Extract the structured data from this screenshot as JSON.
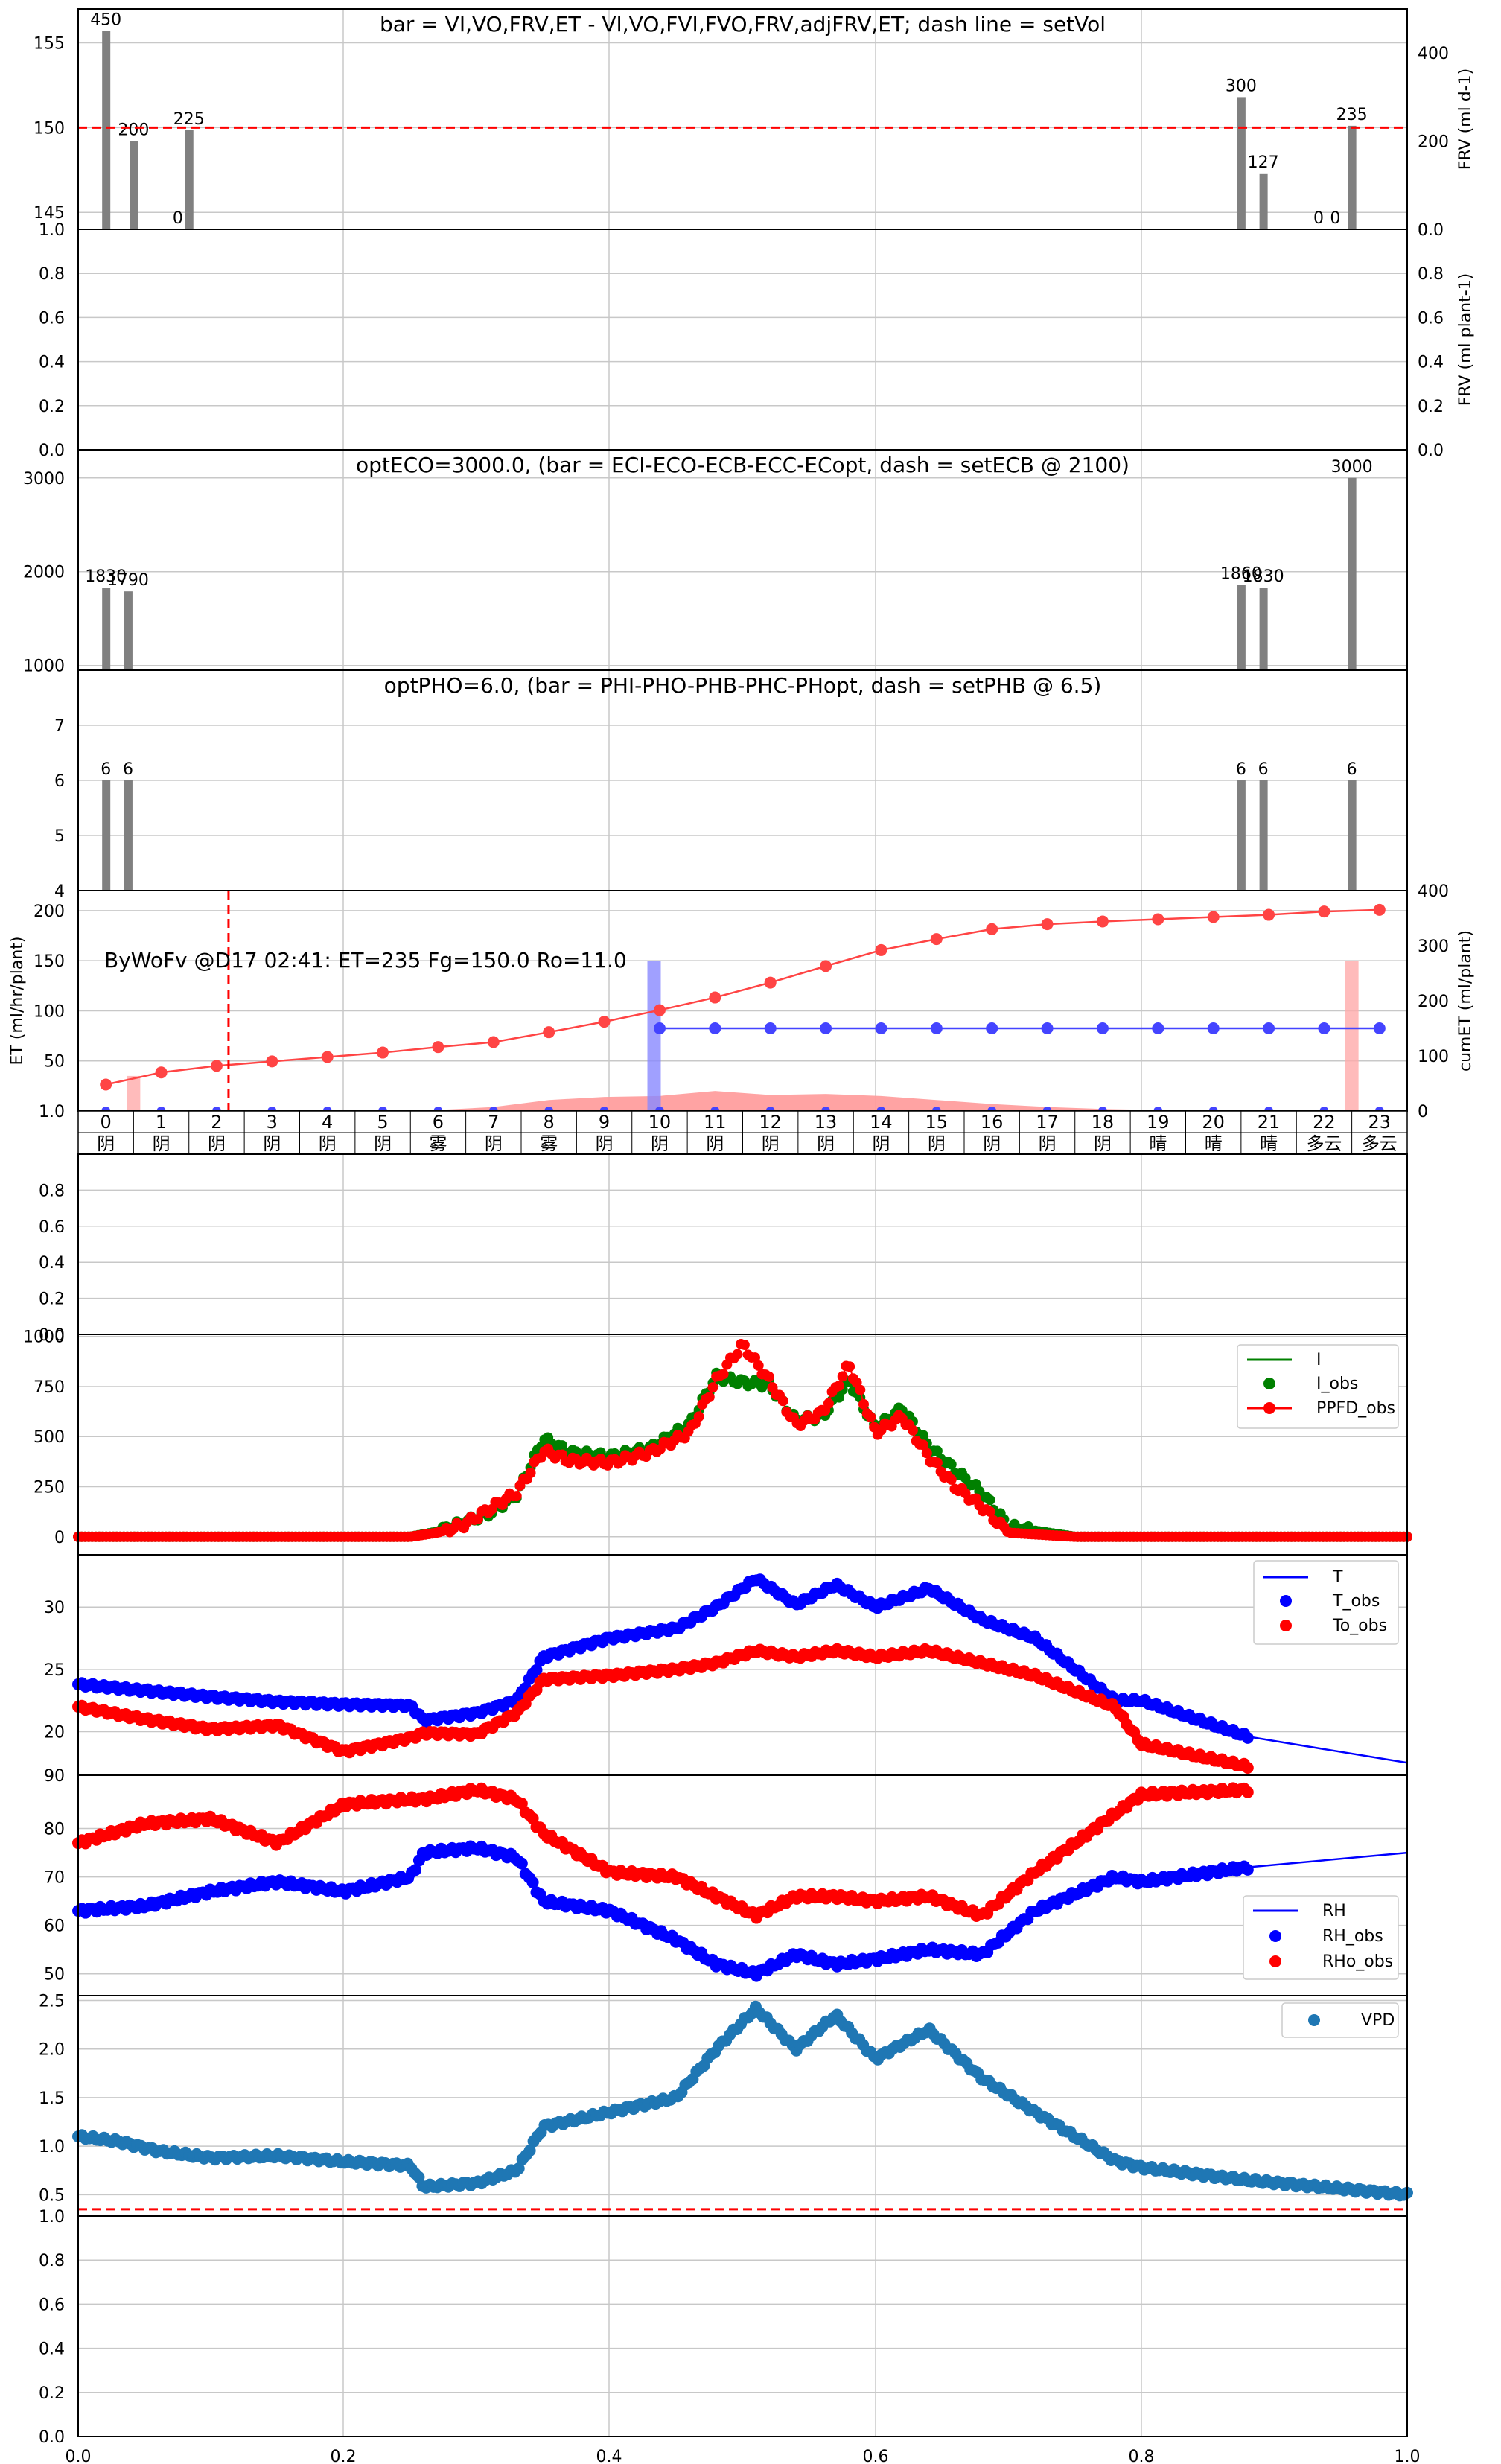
{
  "chart_data": [
    {
      "type": "bar",
      "title": "bar = VI,VO,FRV,ET - VI,VO,FVI,FVO,FRV,adjFRV,ET; dash line = setVol",
      "ylabel": "",
      "y2label": "FRV (ml d-1)",
      "ylim": [
        144,
        157
      ],
      "yticks": [
        145,
        150,
        155
      ],
      "ybottom_label": "1.0",
      "y2lim": [
        0,
        500
      ],
      "y2ticks": [
        0,
        200,
        400
      ],
      "y2bottom_label": "0.0",
      "dash_line": 150,
      "grid": true,
      "bars": [
        {
          "x": 0.5,
          "value": 450
        },
        {
          "x": 1.0,
          "value": 200
        },
        {
          "x": 1.8,
          "value": 0
        },
        {
          "x": 2.0,
          "value": 225
        },
        {
          "x": 21.0,
          "value": 300
        },
        {
          "x": 21.4,
          "value": 127
        },
        {
          "x": 22.4,
          "value": 0
        },
        {
          "x": 22.7,
          "value": 0
        },
        {
          "x": 23.0,
          "value": 235
        }
      ]
    },
    {
      "type": "line",
      "title": "",
      "ylabel": "",
      "y2label": "FRV (ml plant-1)",
      "ylim": [
        0,
        1
      ],
      "yticks": [
        "0.0",
        "0.2",
        "0.4",
        "0.6",
        "0.8"
      ],
      "y2ticks": [
        "0.0",
        "0.2",
        "0.4",
        "0.6",
        "0.8"
      ],
      "grid": true
    },
    {
      "type": "bar",
      "title": "optECO=3000.0, (bar = ECI-ECO-ECB-ECC-ECopt, dash = setECB @ 2100)",
      "ylim": [
        950,
        3300
      ],
      "yticks": [
        1000,
        2000,
        3000
      ],
      "grid": true,
      "bars": [
        {
          "x": 0.5,
          "value": 1830
        },
        {
          "x": 0.9,
          "value": 1790
        },
        {
          "x": 21.0,
          "value": 1860
        },
        {
          "x": 21.4,
          "value": 1830
        },
        {
          "x": 23.0,
          "value": 3000
        }
      ]
    },
    {
      "type": "bar",
      "title": "optPHO=6.0, (bar = PHI-PHO-PHB-PHC-PHopt, dash = setPHB @ 6.5)",
      "ylim": [
        4,
        8
      ],
      "yticks": [
        4,
        5,
        6,
        7
      ],
      "grid": true,
      "bars": [
        {
          "x": 0.5,
          "value": 6
        },
        {
          "x": 0.9,
          "value": 6
        },
        {
          "x": 21.0,
          "value": 6
        },
        {
          "x": 21.4,
          "value": 6
        },
        {
          "x": 23.0,
          "value": 6
        }
      ]
    },
    {
      "type": "line",
      "title": "ByWoFv @D17 02:41: ET=235 Fg=150.0 Ro=11.0",
      "ylabel": "ET (ml/hr/plant)",
      "y2label": "cumET (ml/plant)",
      "ylim": [
        0,
        220
      ],
      "yticks": [
        50,
        100,
        150,
        200
      ],
      "ybottom_label": "1.0",
      "y2lim": [
        0,
        400
      ],
      "y2ticks": [
        0,
        100,
        200,
        300,
        400
      ],
      "hours": [
        "0",
        "1",
        "2",
        "3",
        "4",
        "5",
        "6",
        "7",
        "8",
        "9",
        "10",
        "11",
        "12",
        "13",
        "14",
        "15",
        "16",
        "17",
        "18",
        "19",
        "20",
        "21",
        "22",
        "23"
      ],
      "weather": [
        "阴",
        "阴",
        "阴",
        "阴",
        "阴",
        "阴",
        "雾",
        "阴",
        "雾",
        "阴",
        "阴",
        "阴",
        "阴",
        "阴",
        "阴",
        "阴",
        "阴",
        "阴",
        "阴",
        "晴",
        "晴",
        "晴",
        "多云",
        "多云"
      ],
      "current_hour_marker": 2.5,
      "grid": true,
      "series": [
        {
          "values": [
            0,
            0,
            0,
            0,
            0,
            0,
            0,
            0,
            0,
            0,
            0,
            0,
            0,
            0,
            0,
            0,
            0,
            0,
            0,
            0,
            0,
            0,
            0,
            0
          ]
        },
        {
          "values": [
            48,
            70,
            82,
            90,
            98,
            106,
            116,
            125,
            143,
            162,
            183,
            206,
            233,
            263,
            292,
            312,
            330,
            339,
            344,
            348,
            352,
            356,
            362,
            365
          ]
        },
        {
          "values": [
            null,
            null,
            null,
            null,
            null,
            null,
            null,
            null,
            null,
            null,
            150,
            150,
            150,
            150,
            150,
            150,
            150,
            150,
            150,
            150,
            150,
            150,
            150,
            150
          ]
        }
      ],
      "et_area": [
        0,
        0,
        0,
        0,
        0,
        0,
        1,
        4,
        11,
        14,
        15,
        20,
        16,
        17,
        15,
        11,
        7,
        4,
        2,
        1,
        1,
        1,
        1,
        0
      ],
      "et_bars": [
        {
          "x": 1.0,
          "value": 35
        },
        {
          "x": 10.4,
          "value": 150
        },
        {
          "x": 23.0,
          "value": 150
        }
      ]
    },
    {
      "type": "line",
      "title": "",
      "ylim": [
        0,
        1
      ],
      "yticks": [
        "0.0",
        "0.2",
        "0.4",
        "0.6",
        "0.8"
      ],
      "grid": true
    },
    {
      "type": "scatter",
      "title": "",
      "ylim": [
        -90,
        1010
      ],
      "yticks": [
        0,
        250,
        500,
        750,
        1000
      ],
      "legend": "top-right",
      "grid": true,
      "series": [
        {
          "name": "I",
          "color": "#008000",
          "style": "line"
        },
        {
          "name": "I_obs",
          "color": "#008000",
          "style": "dot"
        },
        {
          "name": "PPFD_obs",
          "color": "#ff0000",
          "style": "line-dot"
        }
      ],
      "x": [
        0,
        0.25,
        0.27,
        0.29,
        0.31,
        0.33,
        0.35,
        0.37,
        0.4,
        0.43,
        0.46,
        0.48,
        0.5,
        0.52,
        0.54,
        0.56,
        0.58,
        0.6,
        0.62,
        0.64,
        0.66,
        0.68,
        0.7,
        0.75,
        1.0
      ],
      "ppfd": [
        0,
        0,
        20,
        60,
        140,
        220,
        430,
        380,
        370,
        420,
        520,
        780,
        960,
        780,
        560,
        620,
        860,
        520,
        600,
        400,
        250,
        150,
        20,
        0,
        0
      ],
      "i_obs": [
        0,
        0,
        25,
        70,
        120,
        210,
        490,
        420,
        400,
        440,
        560,
        800,
        770,
        760,
        580,
        600,
        780,
        540,
        640,
        450,
        330,
        220,
        50,
        0,
        0
      ]
    },
    {
      "type": "scatter",
      "title": "",
      "ylim": [
        16.5,
        34.2
      ],
      "yticks": [
        20,
        25,
        30
      ],
      "ytop_label": "90",
      "legend": "top-right",
      "grid": true,
      "series": [
        {
          "name": "T",
          "color": "#0000ff",
          "style": "line"
        },
        {
          "name": "T_obs",
          "color": "#0000ff",
          "style": "dot"
        },
        {
          "name": "To_obs",
          "color": "#ff0000",
          "style": "dot"
        }
      ],
      "x": [
        0,
        0.05,
        0.1,
        0.15,
        0.2,
        0.25,
        0.26,
        0.3,
        0.33,
        0.35,
        0.4,
        0.45,
        0.48,
        0.51,
        0.54,
        0.57,
        0.6,
        0.64,
        0.68,
        0.72,
        0.78,
        0.8,
        0.88,
        1.0
      ],
      "t_obs": [
        23.8,
        23.3,
        22.8,
        22.4,
        22.2,
        22.1,
        20.9,
        21.5,
        22.5,
        26.0,
        27.5,
        28.3,
        30.0,
        32.3,
        30.2,
        31.8,
        30.0,
        31.5,
        29.0,
        27.5,
        22.5,
        22.5,
        19.6,
        null
      ],
      "to_obs": [
        22.0,
        21.0,
        20.2,
        20.5,
        18.4,
        19.5,
        19.9,
        19.8,
        21.5,
        24.2,
        24.5,
        25.0,
        25.5,
        26.5,
        26.0,
        26.5,
        26.0,
        26.5,
        25.5,
        24.5,
        22.0,
        19.0,
        17.2,
        null
      ],
      "t_model_x": [
        0.88,
        1.0
      ],
      "t_model": [
        19.6,
        17.5
      ]
    },
    {
      "type": "scatter",
      "title": "",
      "ylim": [
        45.5,
        91
      ],
      "yticks": [
        50,
        60,
        70,
        80
      ],
      "legend": "bottom-right",
      "grid": true,
      "series": [
        {
          "name": "RH",
          "color": "#0000ff",
          "style": "line"
        },
        {
          "name": "RH_obs",
          "color": "#0000ff",
          "style": "dot"
        },
        {
          "name": "RHo_obs",
          "color": "#ff0000",
          "style": "dot"
        }
      ],
      "x": [
        0,
        0.05,
        0.1,
        0.15,
        0.2,
        0.25,
        0.26,
        0.3,
        0.33,
        0.35,
        0.4,
        0.45,
        0.48,
        0.51,
        0.54,
        0.57,
        0.6,
        0.64,
        0.68,
        0.72,
        0.78,
        0.8,
        0.88,
        1.0
      ],
      "rh_obs": [
        63,
        64,
        67,
        69,
        67,
        70,
        75,
        76,
        74,
        65,
        63,
        57,
        52,
        50,
        54,
        52,
        53,
        55,
        54,
        63,
        70,
        69,
        72,
        null
      ],
      "rho_obs": [
        77,
        81,
        82,
        77,
        85,
        86,
        86,
        88,
        86,
        79,
        71,
        70,
        66,
        62,
        66,
        66,
        65,
        66,
        62,
        71,
        83,
        87,
        88,
        null
      ],
      "rh_model_x": [
        0.88,
        1.0
      ],
      "rh_model": [
        72,
        75
      ]
    },
    {
      "type": "scatter",
      "title": "",
      "ylim": [
        0.28,
        2.55
      ],
      "yticks": [
        "0.5",
        "1.0",
        "1.5",
        "2.0",
        "2.5"
      ],
      "dash_line": 0.35,
      "legend": "top-right",
      "grid": true,
      "series": [
        {
          "name": "VPD",
          "color": "#1f77b4",
          "style": "dot"
        }
      ],
      "x": [
        0,
        0.03,
        0.06,
        0.1,
        0.15,
        0.2,
        0.25,
        0.26,
        0.3,
        0.33,
        0.35,
        0.4,
        0.45,
        0.48,
        0.51,
        0.54,
        0.57,
        0.6,
        0.64,
        0.68,
        0.72,
        0.78,
        0.8,
        0.88,
        1.0
      ],
      "vpd": [
        1.1,
        1.05,
        0.95,
        0.88,
        0.9,
        0.84,
        0.8,
        0.58,
        0.62,
        0.75,
        1.2,
        1.35,
        1.5,
        2.0,
        2.42,
        2.0,
        2.35,
        1.9,
        2.2,
        1.7,
        1.35,
        0.85,
        0.78,
        0.65,
        0.5
      ]
    },
    {
      "type": "line",
      "title": "",
      "ylim": [
        0,
        1
      ],
      "yticks": [
        "0.0",
        "0.2",
        "0.4",
        "0.6",
        "0.8",
        "1.0"
      ],
      "xticks": [
        "0.0",
        "0.2",
        "0.4",
        "0.6",
        "0.8",
        "1.0"
      ],
      "grid": true
    }
  ]
}
